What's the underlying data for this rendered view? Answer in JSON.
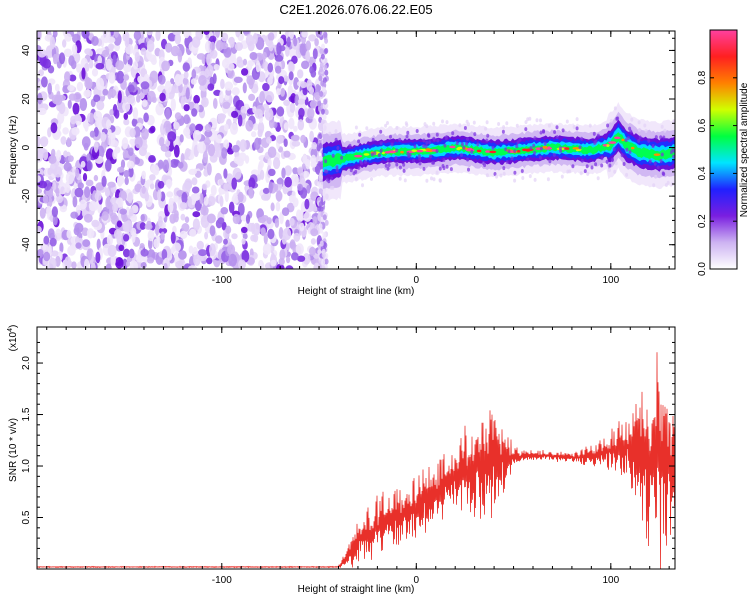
{
  "title": "C2E1.2026.076.06.22.E05",
  "chart_data": [
    {
      "type": "heatmap",
      "xlabel": "Height of straight line (km)",
      "ylabel": "Frequency (Hz)",
      "xlim": [
        -195,
        133
      ],
      "ylim": [
        -50,
        48
      ],
      "x_ticks": [
        -100,
        0,
        100
      ],
      "x_tick_labels": [
        "-100",
        "0",
        "100"
      ],
      "y_ticks": [
        -40,
        -20,
        0,
        20,
        40
      ],
      "y_tick_labels": [
        "-40",
        "-20",
        "0",
        "20",
        "40"
      ],
      "noise_region_x": [
        -195,
        -48
      ],
      "trace": {
        "x": [
          -48,
          -40,
          -30,
          -20,
          -10,
          0,
          10,
          20,
          30,
          40,
          50,
          60,
          70,
          80,
          90,
          100,
          104,
          108,
          115,
          125,
          133
        ],
        "y": [
          -6,
          -5,
          -3.5,
          -2,
          -1.5,
          -1.5,
          -1,
          0,
          -1,
          -2,
          -1.5,
          -0.5,
          0,
          -0.5,
          -1,
          1,
          5,
          1,
          -2,
          -3,
          -2
        ]
      },
      "colorbar": {
        "label": "Normalized spectral amplitude",
        "range": [
          0,
          1
        ],
        "ticks": [
          0.0,
          0.2,
          0.4,
          0.6,
          0.8
        ],
        "tick_labels": [
          "0.0",
          "0.2",
          "0.4",
          "0.6",
          "0.8"
        ],
        "colors": [
          "#ffffff",
          "#cdb3f2",
          "#7a1fe0",
          "#2020ff",
          "#00e5ff",
          "#00ff40",
          "#d0ff00",
          "#ff8000",
          "#ff2020",
          "#ff40a0"
        ]
      }
    },
    {
      "type": "line",
      "xlabel": "Height of straight line (km)",
      "ylabel": "SNR (10 * v/v)",
      "y_multiplier_label": "(x10",
      "y_multiplier_exp": "4",
      "xlim": [
        -195,
        133
      ],
      "ylim": [
        0,
        2.35
      ],
      "x_ticks": [
        -100,
        0,
        100
      ],
      "x_tick_labels": [
        "-100",
        "0",
        "100"
      ],
      "y_ticks": [
        0.5,
        1.0,
        1.5,
        2.0
      ],
      "y_tick_labels": [
        "0.5",
        "1.0",
        "1.5",
        "2.0"
      ],
      "series": [
        {
          "color": "#e8302a",
          "envelope": {
            "x": [
              -195,
              -40,
              -35,
              -30,
              -20,
              -10,
              0,
              10,
              20,
              30,
              40,
              45,
              50,
              60,
              70,
              80,
              90,
              100,
              110,
              115,
              120,
              125,
              128,
              133
            ],
            "mean": [
              0.02,
              0.02,
              0.12,
              0.3,
              0.4,
              0.5,
              0.6,
              0.75,
              0.9,
              0.98,
              1.05,
              1.08,
              1.08,
              1.1,
              1.1,
              1.08,
              1.1,
              1.15,
              1.2,
              1.15,
              1.1,
              1.05,
              1.0,
              1.05
            ],
            "amp": [
              0.005,
              0.005,
              0.12,
              0.22,
              0.3,
              0.3,
              0.3,
              0.35,
              0.4,
              0.45,
              0.55,
              0.4,
              0.1,
              0.05,
              0.05,
              0.05,
              0.1,
              0.2,
              0.35,
              0.6,
              0.9,
              1.1,
              0.9,
              0.6
            ]
          }
        }
      ]
    }
  ]
}
